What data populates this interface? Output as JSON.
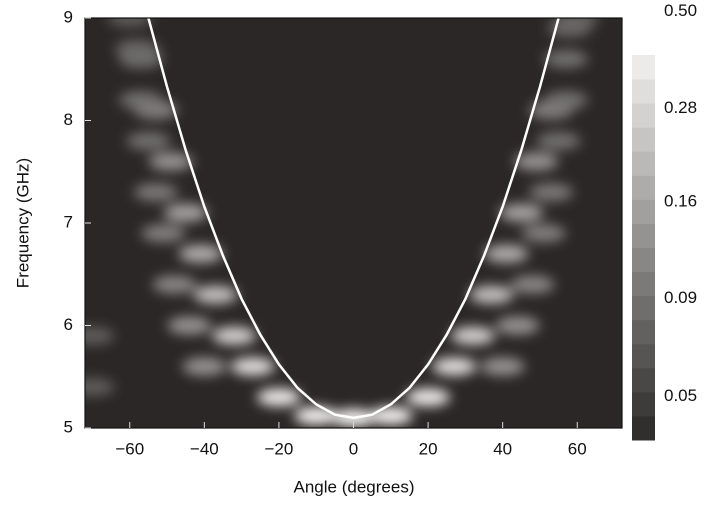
{
  "chart_data": {
    "type": "heatmap-spots",
    "xlabel": "Angle (degrees)",
    "ylabel": "Frequency (GHz)",
    "xlim": [
      -72,
      72
    ],
    "ylim": [
      5,
      9
    ],
    "xticks": [
      {
        "value": -60,
        "label": "−60"
      },
      {
        "value": -40,
        "label": "−40"
      },
      {
        "value": -20,
        "label": "−20"
      },
      0,
      20,
      40,
      60
    ],
    "yticks": [
      5,
      6,
      7,
      8,
      9
    ],
    "spots": {
      "x": [
        0,
        -10,
        10,
        -20,
        20,
        -27,
        27,
        -32,
        32,
        -37,
        37,
        -41,
        41,
        -45,
        45,
        -49,
        49,
        -53,
        53,
        -57,
        57,
        -60,
        60,
        -40,
        -44,
        -48,
        -51,
        -53,
        -55,
        -57,
        -58,
        40,
        44,
        48,
        51,
        53,
        55,
        57,
        58,
        -70,
        -70
      ],
      "y": [
        5.1,
        5.12,
        5.12,
        5.3,
        5.3,
        5.6,
        5.6,
        5.9,
        5.9,
        6.3,
        6.3,
        6.7,
        6.7,
        7.1,
        7.1,
        7.6,
        7.6,
        8.1,
        8.1,
        8.6,
        8.6,
        9.0,
        9.0,
        5.6,
        6.0,
        6.4,
        6.9,
        7.3,
        7.8,
        8.2,
        8.7,
        5.6,
        6.0,
        6.4,
        6.9,
        7.3,
        7.8,
        8.2,
        8.9,
        5.4,
        5.9
      ],
      "values": [
        0.45,
        0.45,
        0.45,
        0.4,
        0.4,
        0.35,
        0.35,
        0.3,
        0.3,
        0.25,
        0.25,
        0.2,
        0.2,
        0.18,
        0.18,
        0.15,
        0.15,
        0.12,
        0.12,
        0.1,
        0.1,
        0.08,
        0.08,
        0.15,
        0.15,
        0.13,
        0.12,
        0.11,
        0.1,
        0.1,
        0.09,
        0.15,
        0.15,
        0.13,
        0.12,
        0.11,
        0.1,
        0.1,
        0.09,
        0.08,
        0.08
      ]
    },
    "curve": {
      "color": "#ffffff",
      "x": [
        -55,
        -50,
        -45,
        -40,
        -35,
        -30,
        -25,
        -20,
        -15,
        -10,
        -5,
        0,
        5,
        10,
        15,
        20,
        25,
        30,
        35,
        40,
        45,
        50,
        55
      ],
      "y": [
        9.0,
        8.33,
        7.71,
        7.16,
        6.68,
        6.26,
        5.91,
        5.62,
        5.39,
        5.23,
        5.13,
        5.1,
        5.13,
        5.23,
        5.39,
        5.62,
        5.91,
        6.26,
        6.68,
        7.16,
        7.71,
        8.33,
        9.0
      ]
    },
    "colorbar": {
      "log": true,
      "zlim": [
        0.044,
        0.44
      ],
      "ticks": [
        {
          "value": 0.5,
          "label": "0.50"
        },
        0.28,
        0.16,
        0.09,
        0.05
      ]
    }
  }
}
